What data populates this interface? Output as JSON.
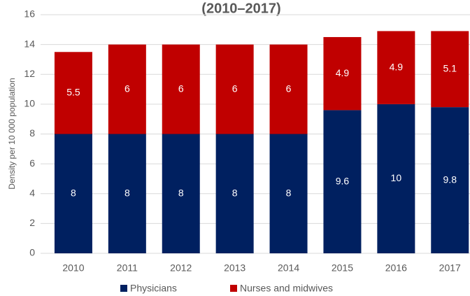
{
  "chart_data": {
    "type": "stacked_bar",
    "title": "(2010–2017)",
    "y_label": "Density per 10 000 population",
    "categories": [
      "2010",
      "2011",
      "2012",
      "2013",
      "2014",
      "2015",
      "2016",
      "2017"
    ],
    "series": [
      {
        "name": "Physicians",
        "color": "#002060",
        "values": [
          8,
          8,
          8,
          8,
          8,
          9.6,
          10,
          9.8
        ]
      },
      {
        "name": "Nurses and midwives",
        "color": "#c00000",
        "values": [
          5.5,
          6,
          6,
          6,
          6,
          4.9,
          4.9,
          5.1
        ]
      }
    ],
    "ylim": [
      0,
      16
    ],
    "yticks": [
      0,
      2,
      4,
      6,
      8,
      10,
      12,
      14,
      16
    ],
    "grid": true,
    "legend": "bottom"
  }
}
